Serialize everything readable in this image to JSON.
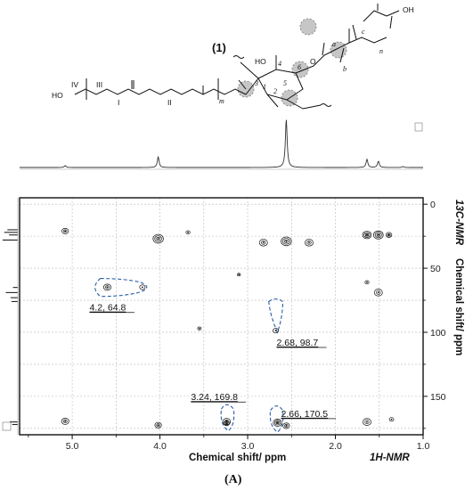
{
  "chart_data": {
    "type": "heatmap",
    "subtype": "2D HMBC NMR correlation spectrum",
    "xlabel": "Chemical shift/ ppm",
    "x_nucleus_label": "1H-NMR",
    "ylabel": "Chemical shift/ ppm",
    "y_nucleus_label": "13C-NMR",
    "xlim": [
      5.6,
      1.0
    ],
    "ylim": [
      -5,
      180
    ],
    "x_reversed": true,
    "y_reversed": true,
    "x_ticks": [
      5.0,
      4.0,
      3.0,
      2.0,
      1.0
    ],
    "x_tick_labels": [
      "5.0",
      "4.0",
      "3.0",
      "2.0",
      "1.0"
    ],
    "y_ticks": [
      0,
      50,
      100,
      150
    ],
    "y_tick_labels": [
      "0",
      "50",
      "100",
      "150"
    ],
    "grid": true,
    "h1_projection_peaks": [
      {
        "x": 5.08,
        "height": 0.04
      },
      {
        "x": 4.02,
        "height": 0.22
      },
      {
        "x": 2.56,
        "height": 1.0
      },
      {
        "x": 1.64,
        "height": 0.17
      },
      {
        "x": 1.51,
        "height": 0.13
      },
      {
        "x": 1.23,
        "height": 0.02
      }
    ],
    "c13_projection_peaks": [
      {
        "y": 20,
        "height": 0.65
      },
      {
        "y": 22,
        "height": 0.85
      },
      {
        "y": 24,
        "height": 0.55
      },
      {
        "y": 28,
        "height": 0.95
      },
      {
        "y": 65,
        "height": 0.3
      },
      {
        "y": 69,
        "height": 0.75
      },
      {
        "y": 73,
        "height": 0.45
      },
      {
        "y": 76,
        "height": 0.4
      },
      {
        "y": 170,
        "height": 0.5
      },
      {
        "y": 172,
        "height": 0.35
      }
    ],
    "cross_peaks": [
      {
        "x": 5.08,
        "y": 21,
        "size": 0.6
      },
      {
        "x": 5.08,
        "y": 169.5,
        "size": 0.7
      },
      {
        "x": 4.02,
        "y": 27,
        "size": 1.1
      },
      {
        "x": 4.02,
        "y": 172.5,
        "size": 0.6
      },
      {
        "x": 4.6,
        "y": 64.8,
        "size": 0.7
      },
      {
        "x": 4.2,
        "y": 64.8,
        "size": 0.45
      },
      {
        "x": 3.68,
        "y": 22,
        "size": 0.25
      },
      {
        "x": 3.55,
        "y": 97,
        "size": 0.2
      },
      {
        "x": 3.24,
        "y": 169.8,
        "size": 0.75
      },
      {
        "x": 3.24,
        "y": 171,
        "size": 0.5
      },
      {
        "x": 3.1,
        "y": 55,
        "size": 0.15
      },
      {
        "x": 2.68,
        "y": 98.7,
        "size": 0.45
      },
      {
        "x": 2.66,
        "y": 170.5,
        "size": 0.85
      },
      {
        "x": 2.82,
        "y": 30,
        "size": 0.8
      },
      {
        "x": 2.56,
        "y": 29,
        "size": 1.1
      },
      {
        "x": 2.3,
        "y": 30,
        "size": 0.8
      },
      {
        "x": 2.56,
        "y": 173,
        "size": 0.6
      },
      {
        "x": 1.64,
        "y": 24,
        "size": 0.9
      },
      {
        "x": 1.64,
        "y": 170,
        "size": 0.8
      },
      {
        "x": 1.51,
        "y": 24,
        "size": 1.0
      },
      {
        "x": 1.51,
        "y": 69,
        "size": 0.8
      },
      {
        "x": 1.64,
        "y": 61,
        "size": 0.25
      },
      {
        "x": 1.39,
        "y": 24,
        "size": 0.5
      },
      {
        "x": 1.36,
        "y": 168,
        "size": 0.3
      }
    ],
    "annotations": [
      {
        "label": "4.2, 64.8",
        "x": 4.2,
        "y": 64.8
      },
      {
        "label": "2.68, 98.7",
        "x": 2.68,
        "y": 98.7
      },
      {
        "label": "3.24, 169.8",
        "x": 3.24,
        "y": 169.8
      },
      {
        "label": "2.66, 170.5",
        "x": 2.66,
        "y": 170.5
      }
    ],
    "compound_label": "(1)",
    "structure_labels": [
      "HO",
      "IV",
      "III",
      "I",
      "II",
      "m",
      "HO",
      "O",
      "4",
      "6",
      "a",
      "b",
      "c",
      "n",
      "OH",
      "1",
      "2",
      "3",
      "5"
    ],
    "caption": "(A)",
    "colors": {
      "contour": "#111111",
      "highlight": "#2b5fa8",
      "grid": "#b8b8b8",
      "shade": "#bdbdbd"
    }
  }
}
